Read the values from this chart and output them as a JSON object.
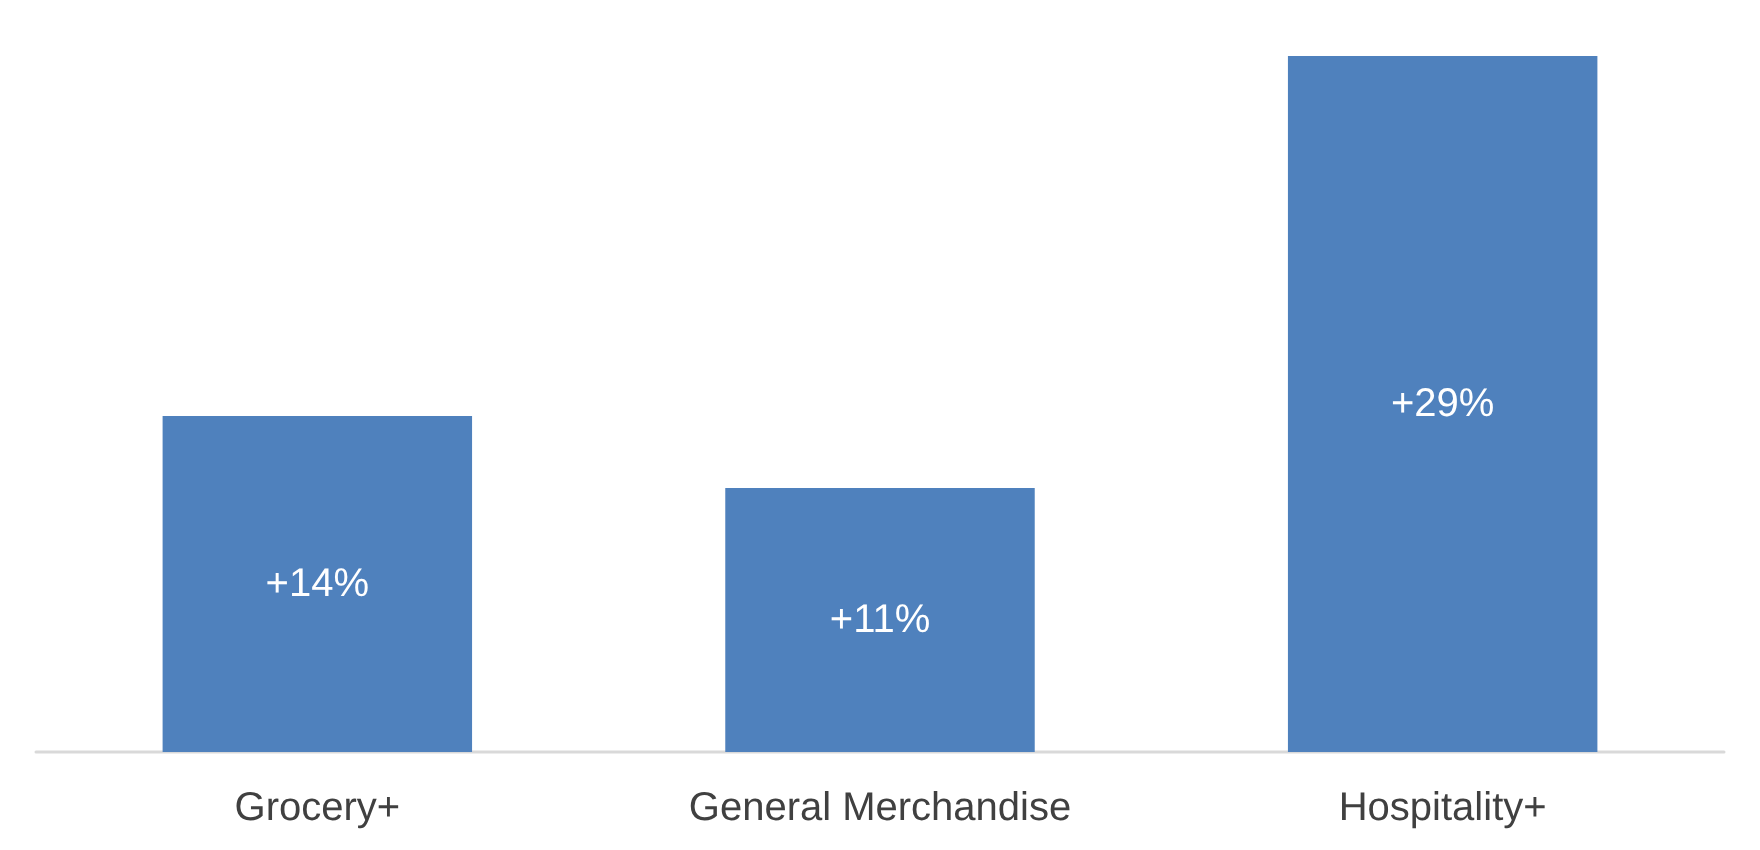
{
  "chart_data": {
    "type": "bar",
    "categories": [
      "Grocery+",
      "General Merchandise",
      "Hospitality+"
    ],
    "values": [
      14,
      11,
      29
    ],
    "value_labels": [
      "+14%",
      "+11%",
      "+29%"
    ],
    "color": "#4f81bd"
  }
}
